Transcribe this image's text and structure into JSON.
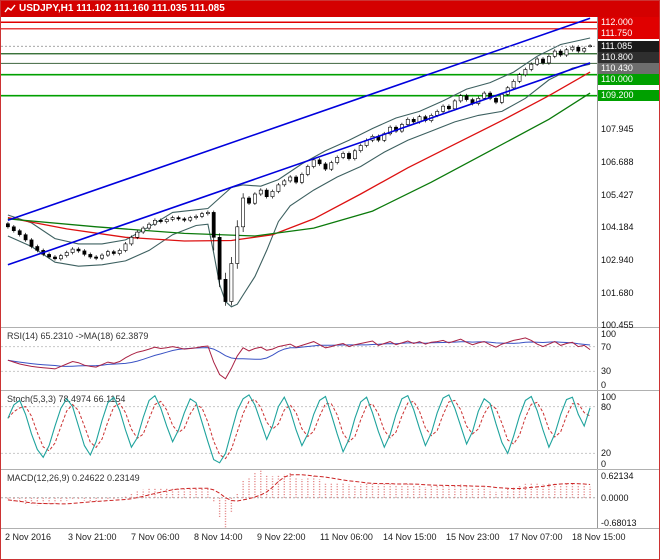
{
  "symbol_info": {
    "symbol": "USDJPY,H1",
    "open": "111.102",
    "high": "111.160",
    "low": "111.035",
    "close": "111.085",
    "display": "USDJPY,H1  111.102 111.160 111.035 111.085"
  },
  "colors": {
    "strip_bg": "#d40000",
    "strip_text": "#ffffff",
    "border": "#cc3333",
    "separator": "#b0b0b0",
    "axis_text": "#111111",
    "grid_level": "#c8c8c8",
    "candle_up_fill": "#ffffff",
    "candle_down_fill": "#000000",
    "candle_outline": "#000000",
    "channel": "#0000dd",
    "band": "#3d6060",
    "ma_red": "#dd1111",
    "ma_green": "#0b7a0b",
    "rsi_main": "#aa2244",
    "rsi_ma": "#3a52c4",
    "stoch_main": "#1fa39d",
    "stoch_signal": "#cc3333",
    "macd_bar": "#e07a7a",
    "macd_signal": "#cc2222",
    "current_price_line": "#888888",
    "pane_label": "#333333",
    "time_text": "#222222"
  },
  "chart_data": {
    "type": "candlestick",
    "title": "USDJPY H1 with RSI, Stochastic and MACD",
    "symbol": "USDJPY",
    "timeframe": "H1",
    "x_labels": [
      "2 Nov 2016",
      "3 Nov 21:00",
      "7 Nov 06:00",
      "8 Nov 14:00",
      "9 Nov 22:00",
      "11 Nov 06:00",
      "14 Nov 15:00",
      "15 Nov 23:00",
      "17 Nov 07:00",
      "18 Nov 15:00"
    ],
    "main": {
      "ylim": [
        100.38,
        112.2
      ],
      "axis_labels": [
        107.945,
        106.688,
        105.427,
        104.184,
        102.94,
        101.68,
        100.455
      ],
      "price_tags": [
        {
          "value": "112.000",
          "color": "#e00000"
        },
        {
          "value": "111.750",
          "color": "#e00000"
        },
        {
          "value": "111.085",
          "color": "#1a1a1a"
        },
        {
          "value": "110.800",
          "color": "#2f2f2f"
        },
        {
          "value": "110.430",
          "color": "#6e6e6e"
        },
        {
          "value": "110.000",
          "color": "#00a000"
        },
        {
          "value": "109.200",
          "color": "#00a000"
        }
      ],
      "closes": [
        104.2,
        104.05,
        103.9,
        103.7,
        103.45,
        103.3,
        103.15,
        103.05,
        102.98,
        103.1,
        103.22,
        103.35,
        103.28,
        103.15,
        103.05,
        103.0,
        103.12,
        103.25,
        103.18,
        103.3,
        103.55,
        103.8,
        104.0,
        104.15,
        104.3,
        104.45,
        104.4,
        104.48,
        104.55,
        104.5,
        104.45,
        104.55,
        104.6,
        104.7,
        104.75,
        103.8,
        102.2,
        101.35,
        102.8,
        104.2,
        105.3,
        105.1,
        105.45,
        105.6,
        105.35,
        105.55,
        105.8,
        105.95,
        106.1,
        105.9,
        106.2,
        106.5,
        106.75,
        106.6,
        106.4,
        106.65,
        106.85,
        107.0,
        106.8,
        107.1,
        107.3,
        107.5,
        107.65,
        107.5,
        107.75,
        108.0,
        107.85,
        108.1,
        108.3,
        108.2,
        108.4,
        108.25,
        108.45,
        108.6,
        108.8,
        108.7,
        109.0,
        109.2,
        109.05,
        108.9,
        109.1,
        109.3,
        109.1,
        108.95,
        109.25,
        109.5,
        109.75,
        110.0,
        110.2,
        110.4,
        110.6,
        110.45,
        110.7,
        110.9,
        110.75,
        110.95,
        111.05,
        110.9,
        111.0,
        111.085
      ],
      "ohlc_overrides": {
        "35": [
          104.75,
          104.82,
          103.3,
          103.8
        ],
        "36": [
          103.8,
          103.95,
          101.9,
          102.2
        ],
        "37": [
          102.2,
          102.45,
          101.19,
          101.35
        ],
        "38": [
          101.35,
          103.05,
          101.2,
          102.8
        ],
        "39": [
          102.8,
          104.45,
          102.6,
          104.2
        ],
        "40": [
          104.2,
          105.48,
          104.0,
          105.3
        ],
        "99": [
          111.102,
          111.16,
          111.035,
          111.085
        ]
      },
      "default_wick": 0.07,
      "overlays": {
        "hlines": [
          {
            "price": 112.0,
            "color": "#e00000",
            "width": 1.6
          },
          {
            "price": 111.75,
            "color": "#e00000",
            "width": 1.2
          },
          {
            "price": 110.8,
            "color": "#1f5f1f",
            "width": 1.2
          },
          {
            "price": 110.43,
            "color": "#557755",
            "width": 1.2
          },
          {
            "price": 110.0,
            "color": "#00a000",
            "width": 1.6
          },
          {
            "price": 109.2,
            "color": "#00a000",
            "width": 1.6
          }
        ],
        "channel_lower": [
          [
            0,
            102.75
          ],
          [
            99,
            110.45
          ]
        ],
        "channel_upper": [
          [
            0,
            104.45
          ],
          [
            99,
            112.15
          ]
        ],
        "band_upper": [
          [
            0,
            104.65
          ],
          [
            4,
            104.35
          ],
          [
            8,
            103.75
          ],
          [
            12,
            103.55
          ],
          [
            16,
            103.55
          ],
          [
            20,
            103.7
          ],
          [
            24,
            104.2
          ],
          [
            28,
            104.75
          ],
          [
            32,
            104.85
          ],
          [
            34,
            104.9
          ],
          [
            36,
            105.3
          ],
          [
            38,
            105.7
          ],
          [
            40,
            105.8
          ],
          [
            43,
            105.75
          ],
          [
            46,
            106.0
          ],
          [
            50,
            106.6
          ],
          [
            54,
            107.1
          ],
          [
            58,
            107.5
          ],
          [
            62,
            107.95
          ],
          [
            66,
            108.35
          ],
          [
            70,
            108.6
          ],
          [
            74,
            109.0
          ],
          [
            78,
            109.45
          ],
          [
            82,
            109.7
          ],
          [
            86,
            110.1
          ],
          [
            90,
            110.7
          ],
          [
            94,
            111.15
          ],
          [
            99,
            111.4
          ]
        ],
        "band_lower": [
          [
            0,
            103.85
          ],
          [
            4,
            103.45
          ],
          [
            8,
            102.85
          ],
          [
            12,
            102.7
          ],
          [
            16,
            102.75
          ],
          [
            20,
            102.9
          ],
          [
            24,
            103.3
          ],
          [
            28,
            103.9
          ],
          [
            32,
            104.25
          ],
          [
            34,
            104.3
          ],
          [
            35,
            103.2
          ],
          [
            36,
            102.0
          ],
          [
            37,
            101.35
          ],
          [
            38,
            101.15
          ],
          [
            39,
            101.25
          ],
          [
            40,
            101.6
          ],
          [
            42,
            102.3
          ],
          [
            44,
            103.3
          ],
          [
            46,
            104.4
          ],
          [
            48,
            105.0
          ],
          [
            52,
            105.6
          ],
          [
            56,
            106.1
          ],
          [
            60,
            106.5
          ],
          [
            64,
            107.05
          ],
          [
            68,
            107.5
          ],
          [
            72,
            107.85
          ],
          [
            76,
            108.2
          ],
          [
            80,
            108.45
          ],
          [
            84,
            108.6
          ],
          [
            88,
            109.1
          ],
          [
            92,
            109.8
          ],
          [
            96,
            110.25
          ],
          [
            99,
            110.4
          ]
        ],
        "ma_red": [
          [
            0,
            104.55
          ],
          [
            10,
            104.12
          ],
          [
            20,
            103.8
          ],
          [
            30,
            103.66
          ],
          [
            38,
            103.68
          ],
          [
            45,
            103.9
          ],
          [
            52,
            104.5
          ],
          [
            60,
            105.45
          ],
          [
            68,
            106.45
          ],
          [
            76,
            107.35
          ],
          [
            84,
            108.25
          ],
          [
            92,
            109.2
          ],
          [
            99,
            110.1
          ]
        ],
        "ma_green": [
          [
            0,
            104.5
          ],
          [
            15,
            104.2
          ],
          [
            30,
            103.95
          ],
          [
            42,
            103.85
          ],
          [
            52,
            104.15
          ],
          [
            62,
            104.8
          ],
          [
            72,
            105.9
          ],
          [
            82,
            107.1
          ],
          [
            92,
            108.3
          ],
          [
            99,
            109.3
          ]
        ],
        "current_price": 111.085
      }
    },
    "rsi": {
      "label": "RSI(14) 65.2310  ->MA(18) 62.3879",
      "ylim": [
        0,
        100
      ],
      "levels": [
        70,
        30
      ],
      "axis_labels": [
        {
          "v": 100,
          "t": "100"
        },
        {
          "v": 70,
          "t": "70"
        },
        {
          "v": 30,
          "t": "30"
        },
        {
          "v": 0,
          "t": "0"
        }
      ],
      "ma_window": 9,
      "values": [
        48,
        45,
        42,
        40,
        38,
        37,
        36,
        35,
        34,
        38,
        42,
        46,
        44,
        40,
        38,
        37,
        41,
        45,
        43,
        46,
        52,
        57,
        61,
        63,
        66,
        69,
        67,
        68,
        70,
        68,
        66,
        67,
        68,
        70,
        71,
        45,
        25,
        18,
        35,
        55,
        68,
        63,
        67,
        69,
        64,
        66,
        70,
        72,
        74,
        69,
        72,
        75,
        78,
        73,
        68,
        70,
        73,
        75,
        70,
        73,
        75,
        77,
        79,
        72,
        75,
        78,
        73,
        76,
        79,
        75,
        78,
        74,
        77,
        78,
        80,
        76,
        79,
        82,
        77,
        73,
        76,
        78,
        73,
        69,
        74,
        77,
        80,
        82,
        84,
        80,
        74,
        70,
        74,
        78,
        72,
        75,
        77,
        70,
        72,
        65.2
      ]
    },
    "stoch": {
      "label": "Stoch(5,3,3) 78.4974 66.1154",
      "ylim": [
        0,
        100
      ],
      "levels": [
        80,
        20
      ],
      "axis_labels": [
        {
          "v": 100,
          "t": "100"
        },
        {
          "v": 80,
          "t": "80"
        },
        {
          "v": 20,
          "t": "20"
        },
        {
          "v": 0,
          "t": "0"
        }
      ],
      "d_window": 3,
      "k": [
        65,
        82,
        88,
        70,
        45,
        25,
        15,
        30,
        55,
        78,
        90,
        80,
        55,
        30,
        18,
        35,
        62,
        85,
        92,
        75,
        50,
        28,
        40,
        66,
        88,
        94,
        78,
        55,
        35,
        50,
        72,
        90,
        85,
        60,
        35,
        12,
        8,
        20,
        48,
        75,
        90,
        95,
        82,
        60,
        38,
        55,
        80,
        92,
        75,
        50,
        30,
        45,
        70,
        88,
        93,
        70,
        45,
        22,
        38,
        65,
        86,
        92,
        72,
        48,
        28,
        44,
        70,
        90,
        94,
        76,
        52,
        30,
        46,
        72,
        91,
        95,
        78,
        55,
        32,
        48,
        74,
        90,
        84,
        58,
        34,
        20,
        42,
        68,
        88,
        93,
        75,
        50,
        28,
        45,
        70,
        89,
        92,
        70,
        55,
        78.5
      ]
    },
    "macd": {
      "label": "MACD(12,26,9) 0.24622 0.23149",
      "ylim": [
        -0.68013,
        0.62134
      ],
      "axis_labels": [
        {
          "v": 0.62134,
          "t": "0.62134"
        },
        {
          "v": 0,
          "t": "0.0000"
        },
        {
          "v": -0.68013,
          "t": "-0.68013"
        }
      ],
      "signal_window": 9,
      "values": [
        -0.05,
        -0.08,
        -0.12,
        -0.15,
        -0.17,
        -0.18,
        -0.17,
        -0.15,
        -0.13,
        -0.1,
        -0.07,
        -0.04,
        -0.05,
        -0.07,
        -0.08,
        -0.08,
        -0.06,
        -0.03,
        -0.04,
        0.0,
        0.05,
        0.1,
        0.15,
        0.18,
        0.21,
        0.23,
        0.22,
        0.22,
        0.23,
        0.21,
        0.19,
        0.19,
        0.2,
        0.21,
        0.22,
        -0.1,
        -0.45,
        -0.68,
        -0.35,
        0.1,
        0.4,
        0.45,
        0.55,
        0.62,
        0.52,
        0.48,
        0.5,
        0.53,
        0.55,
        0.45,
        0.42,
        0.45,
        0.48,
        0.42,
        0.35,
        0.32,
        0.33,
        0.35,
        0.3,
        0.29,
        0.3,
        0.32,
        0.34,
        0.3,
        0.31,
        0.33,
        0.28,
        0.29,
        0.31,
        0.27,
        0.28,
        0.24,
        0.26,
        0.27,
        0.29,
        0.25,
        0.27,
        0.3,
        0.26,
        0.21,
        0.22,
        0.24,
        0.18,
        0.13,
        0.16,
        0.2,
        0.24,
        0.28,
        0.31,
        0.33,
        0.35,
        0.3,
        0.32,
        0.34,
        0.29,
        0.31,
        0.32,
        0.26,
        0.27,
        0.246
      ]
    }
  }
}
